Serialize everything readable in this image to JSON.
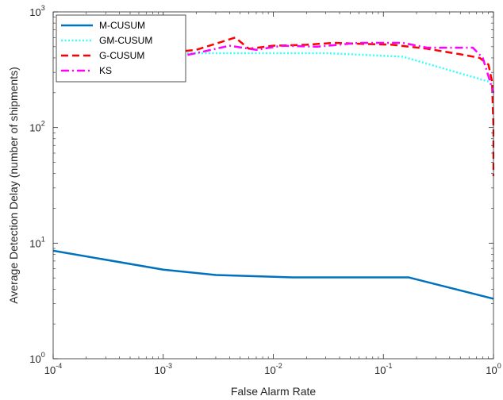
{
  "chart_data": {
    "type": "line",
    "xlabel": "False Alarm Rate",
    "ylabel": "Average Detection Delay (number of shipments)",
    "x_scale": "log",
    "y_scale": "log",
    "xlim": [
      0.0001,
      1
    ],
    "ylim": [
      1,
      1000
    ],
    "x_ticks": [
      {
        "value": 0.0001,
        "base": "10",
        "exp": "-4"
      },
      {
        "value": 0.001,
        "base": "10",
        "exp": "-3"
      },
      {
        "value": 0.01,
        "base": "10",
        "exp": "-2"
      },
      {
        "value": 0.1,
        "base": "10",
        "exp": "-1"
      },
      {
        "value": 1,
        "base": "10",
        "exp": "0"
      }
    ],
    "y_ticks": [
      {
        "value": 1,
        "base": "10",
        "exp": "0"
      },
      {
        "value": 10,
        "base": "10",
        "exp": "1"
      },
      {
        "value": 100,
        "base": "10",
        "exp": "2"
      },
      {
        "value": 1000,
        "base": "10",
        "exp": "3"
      }
    ],
    "grid": false,
    "legend_position": "top-left",
    "series": [
      {
        "name": "M-CUSUM",
        "color": "#0072BD",
        "dash": "solid",
        "x": [
          0.0001,
          0.001,
          0.003,
          0.015,
          0.17,
          1.0
        ],
        "y": [
          8.6,
          5.9,
          5.3,
          5.05,
          5.05,
          3.3
        ]
      },
      {
        "name": "GM-CUSUM",
        "color": "#33FFFF",
        "dash": "dotted",
        "x": [
          0.0005,
          0.001,
          0.003,
          0.01,
          0.03,
          0.15,
          0.9
        ],
        "y": [
          430,
          440,
          440,
          440,
          440,
          410,
          250
        ]
      },
      {
        "name": "G-CUSUM",
        "color": "#FF0000",
        "dash": "dashed",
        "x": [
          0.0005,
          0.001,
          0.002,
          0.0045,
          0.006,
          0.01,
          0.02,
          0.035,
          0.06,
          0.12,
          0.25,
          0.5,
          0.75,
          0.9,
          0.97,
          1.0,
          1.0
        ],
        "y": [
          430,
          440,
          470,
          600,
          480,
          510,
          520,
          540,
          530,
          520,
          480,
          430,
          400,
          350,
          250,
          100,
          38
        ]
      },
      {
        "name": "KS",
        "color": "#FF00FF",
        "dash": "dashdot",
        "x": [
          0.0012,
          0.002,
          0.004,
          0.007,
          0.012,
          0.025,
          0.06,
          0.15,
          0.25,
          0.4,
          0.65,
          0.8,
          1.0
        ],
        "y": [
          400,
          440,
          510,
          470,
          510,
          500,
          540,
          540,
          490,
          490,
          490,
          400,
          200
        ]
      }
    ]
  }
}
